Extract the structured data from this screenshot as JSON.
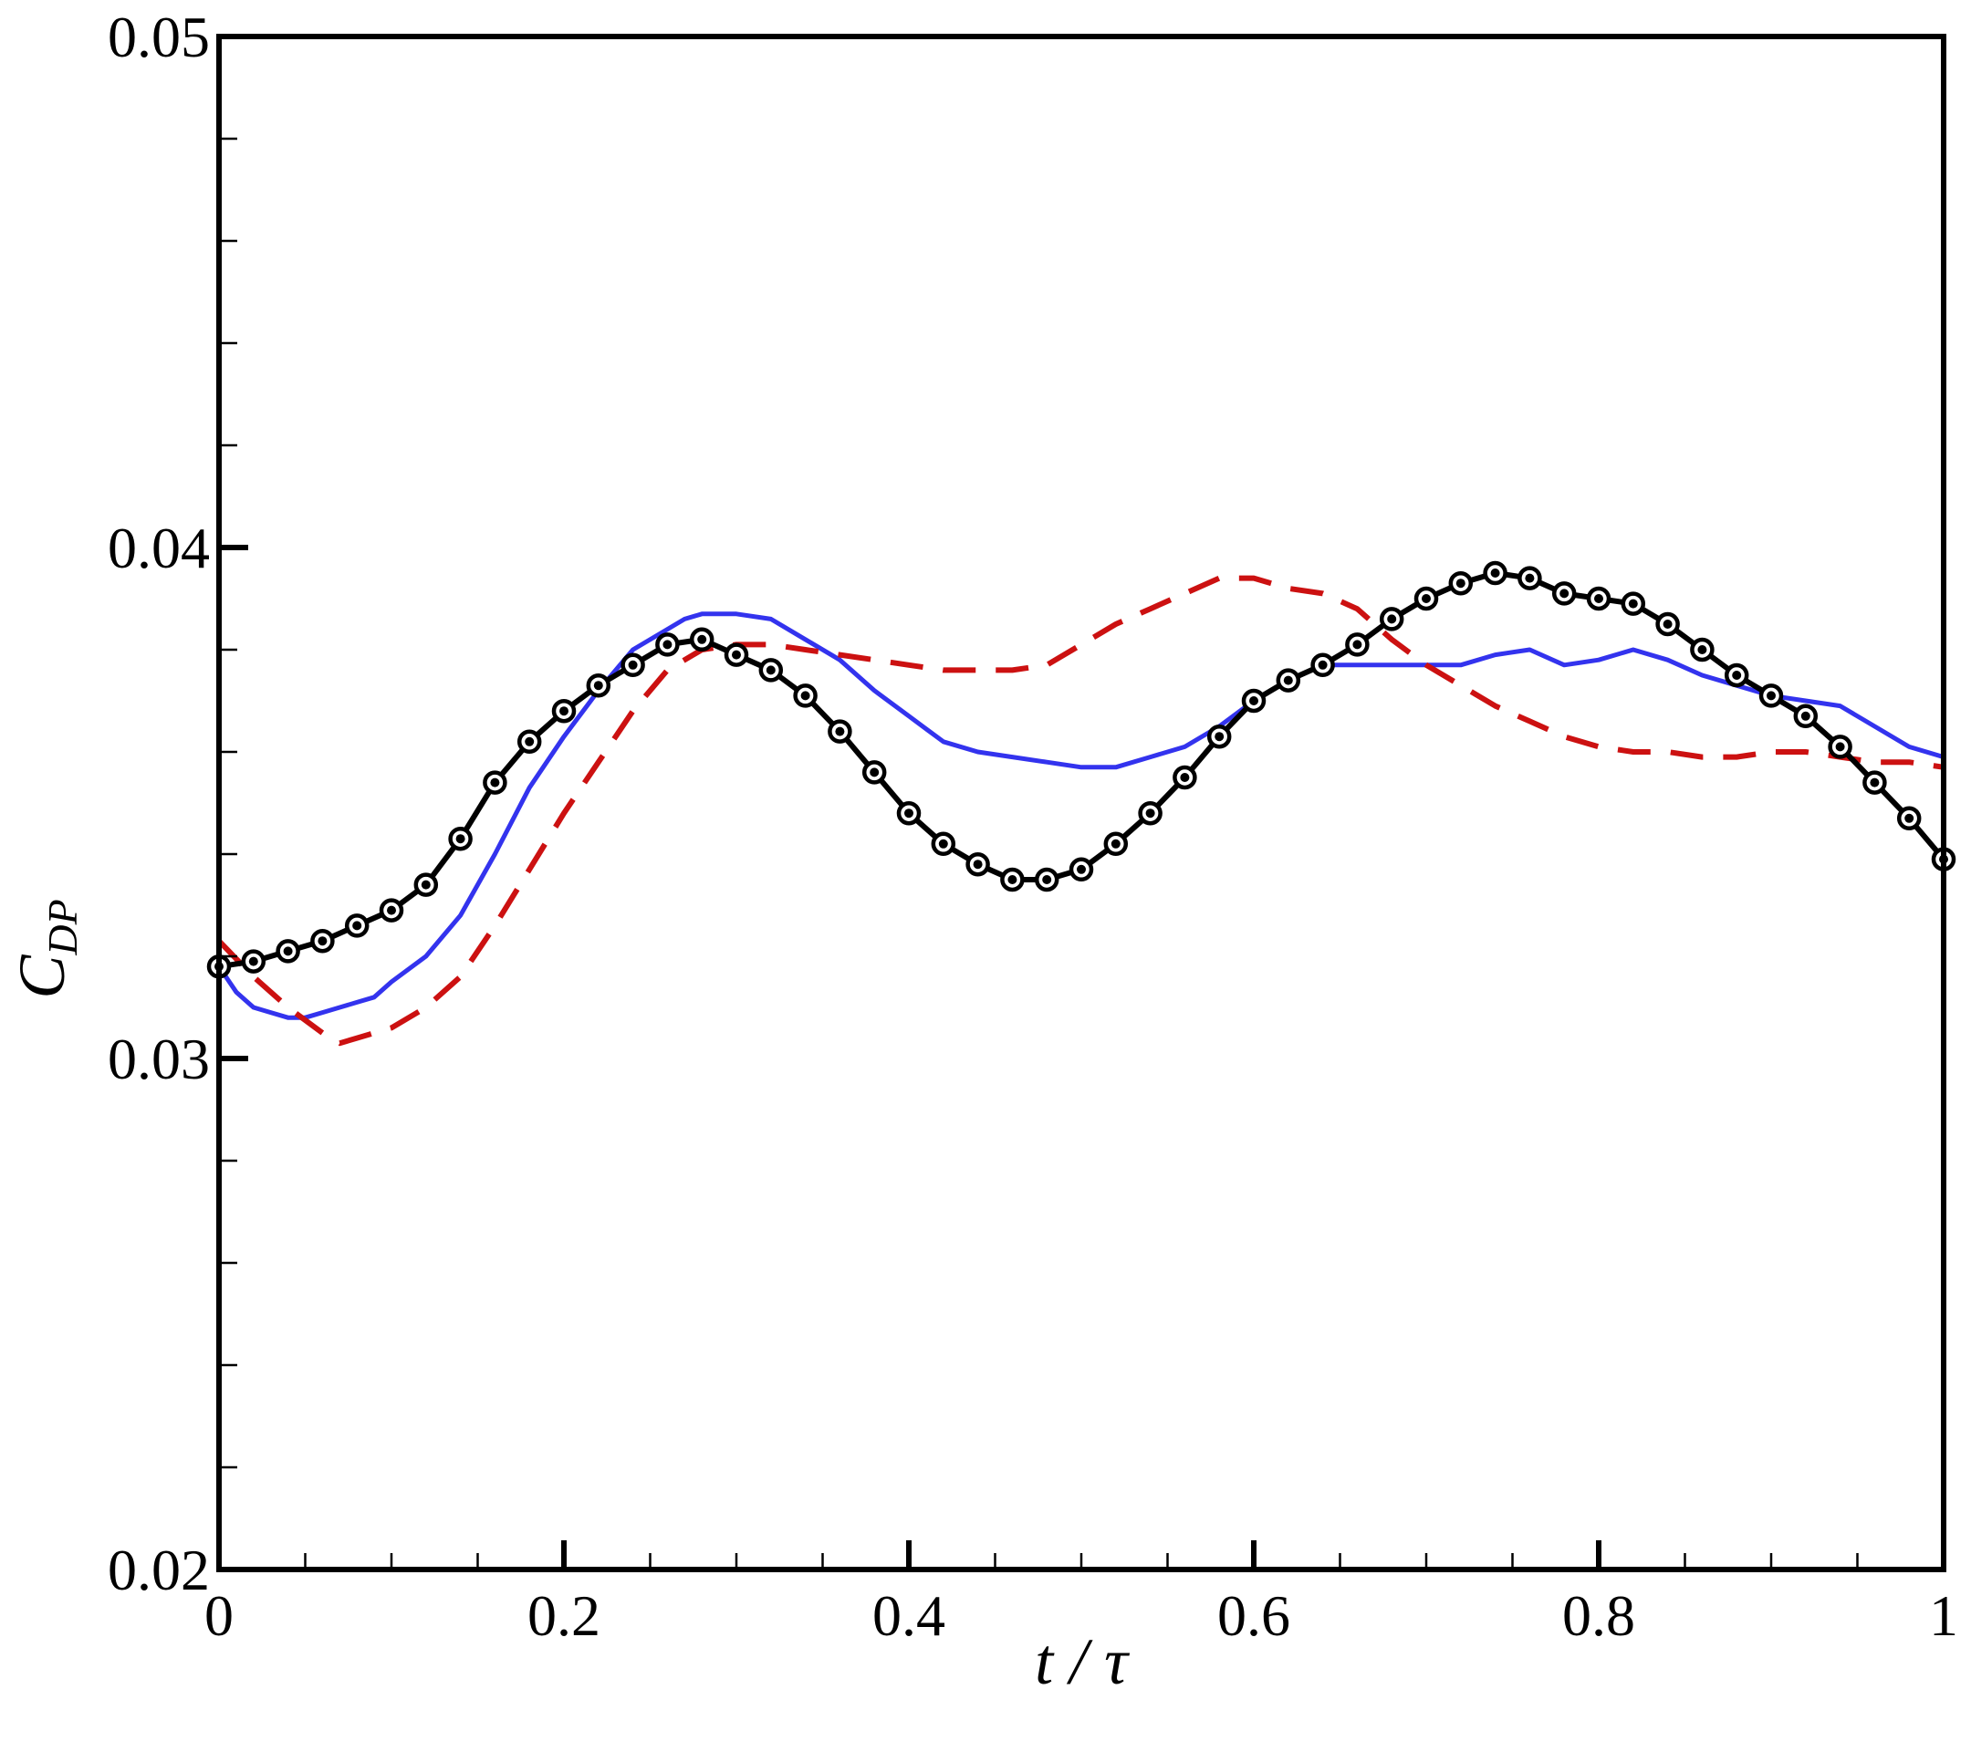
{
  "chart_data": {
    "type": "line",
    "title": "",
    "xlabel": "t / τ",
    "ylabel": {
      "main": "C",
      "subscript": "DP"
    },
    "xlim": [
      0,
      1
    ],
    "ylim": [
      0.02,
      0.05
    ],
    "x_ticks": [
      0,
      0.2,
      0.4,
      0.6,
      0.8,
      1
    ],
    "x_tick_labels": [
      "0",
      "0.2",
      "0.4",
      "0.6",
      "0.8",
      "1"
    ],
    "y_ticks": [
      0.02,
      0.03,
      0.04,
      0.05
    ],
    "y_tick_labels": [
      "0.02",
      "0.03",
      "0.04",
      "0.05"
    ],
    "grid": false,
    "legend": "none",
    "series": [
      {
        "color": "#3333ee",
        "style": "solid",
        "x": [
          0,
          0.01,
          0.02,
          0.03,
          0.04,
          0.05,
          0.06,
          0.07,
          0.08,
          0.09,
          0.1,
          0.12,
          0.14,
          0.16,
          0.18,
          0.2,
          0.22,
          0.24,
          0.26,
          0.27,
          0.28,
          0.3,
          0.32,
          0.34,
          0.36,
          0.38,
          0.4,
          0.42,
          0.44,
          0.46,
          0.48,
          0.5,
          0.52,
          0.54,
          0.56,
          0.58,
          0.6,
          0.62,
          0.64,
          0.66,
          0.68,
          0.7,
          0.72,
          0.74,
          0.76,
          0.78,
          0.8,
          0.82,
          0.84,
          0.86,
          0.88,
          0.9,
          0.92,
          0.94,
          0.96,
          0.98,
          1.0
        ],
        "y": [
          0.0318,
          0.0313,
          0.031,
          0.0309,
          0.0308,
          0.0308,
          0.0309,
          0.031,
          0.0311,
          0.0312,
          0.0315,
          0.032,
          0.0328,
          0.034,
          0.0353,
          0.0363,
          0.0372,
          0.038,
          0.0384,
          0.0386,
          0.0387,
          0.0387,
          0.0386,
          0.0382,
          0.0378,
          0.0372,
          0.0367,
          0.0362,
          0.036,
          0.0359,
          0.0358,
          0.0357,
          0.0357,
          0.0359,
          0.0361,
          0.0365,
          0.037,
          0.0374,
          0.0377,
          0.0377,
          0.0377,
          0.0377,
          0.0377,
          0.0379,
          0.038,
          0.0377,
          0.0378,
          0.038,
          0.0378,
          0.0375,
          0.0373,
          0.0371,
          0.037,
          0.0369,
          0.0365,
          0.0361,
          0.0359
        ]
      },
      {
        "color": "#cc1111",
        "style": "dashed",
        "x": [
          0,
          0.02,
          0.04,
          0.06,
          0.07,
          0.08,
          0.1,
          0.12,
          0.14,
          0.16,
          0.18,
          0.2,
          0.22,
          0.24,
          0.26,
          0.28,
          0.3,
          0.32,
          0.34,
          0.36,
          0.38,
          0.4,
          0.42,
          0.44,
          0.46,
          0.48,
          0.5,
          0.52,
          0.54,
          0.56,
          0.58,
          0.6,
          0.62,
          0.64,
          0.66,
          0.68,
          0.7,
          0.72,
          0.74,
          0.76,
          0.78,
          0.8,
          0.82,
          0.84,
          0.86,
          0.88,
          0.9,
          0.92,
          0.94,
          0.96,
          0.98,
          1.0
        ],
        "y": [
          0.0323,
          0.0316,
          0.031,
          0.0305,
          0.0303,
          0.0304,
          0.0306,
          0.031,
          0.0316,
          0.0326,
          0.0337,
          0.0348,
          0.0358,
          0.0368,
          0.0376,
          0.038,
          0.0381,
          0.0381,
          0.038,
          0.0379,
          0.0378,
          0.0377,
          0.0376,
          0.0376,
          0.0376,
          0.0377,
          0.0381,
          0.0385,
          0.0388,
          0.0391,
          0.0394,
          0.0394,
          0.0392,
          0.0391,
          0.0388,
          0.0382,
          0.0377,
          0.0373,
          0.0369,
          0.0366,
          0.0363,
          0.0361,
          0.036,
          0.036,
          0.0359,
          0.0359,
          0.036,
          0.036,
          0.0359,
          0.0358,
          0.0358,
          0.0357
        ]
      },
      {
        "color": "#000000",
        "style": "solid-markers",
        "x": [
          0,
          0.02,
          0.04,
          0.06,
          0.08,
          0.1,
          0.12,
          0.14,
          0.16,
          0.18,
          0.2,
          0.22,
          0.24,
          0.26,
          0.28,
          0.3,
          0.32,
          0.34,
          0.36,
          0.38,
          0.4,
          0.42,
          0.44,
          0.46,
          0.48,
          0.5,
          0.52,
          0.54,
          0.56,
          0.58,
          0.6,
          0.62,
          0.64,
          0.66,
          0.68,
          0.7,
          0.72,
          0.74,
          0.76,
          0.78,
          0.8,
          0.82,
          0.84,
          0.86,
          0.88,
          0.9,
          0.92,
          0.94,
          0.96,
          0.98,
          1.0
        ],
        "y": [
          0.0318,
          0.0319,
          0.0321,
          0.0323,
          0.0326,
          0.0329,
          0.0334,
          0.0343,
          0.0354,
          0.0362,
          0.0368,
          0.0373,
          0.0377,
          0.0381,
          0.0382,
          0.0379,
          0.0376,
          0.0371,
          0.0364,
          0.0356,
          0.0348,
          0.0342,
          0.0338,
          0.0335,
          0.0335,
          0.0337,
          0.0342,
          0.0348,
          0.0355,
          0.0363,
          0.037,
          0.0374,
          0.0377,
          0.0381,
          0.0386,
          0.039,
          0.0393,
          0.0395,
          0.0394,
          0.0391,
          0.039,
          0.0389,
          0.0385,
          0.038,
          0.0375,
          0.0371,
          0.0367,
          0.0361,
          0.0354,
          0.0347,
          0.0339
        ]
      }
    ]
  }
}
